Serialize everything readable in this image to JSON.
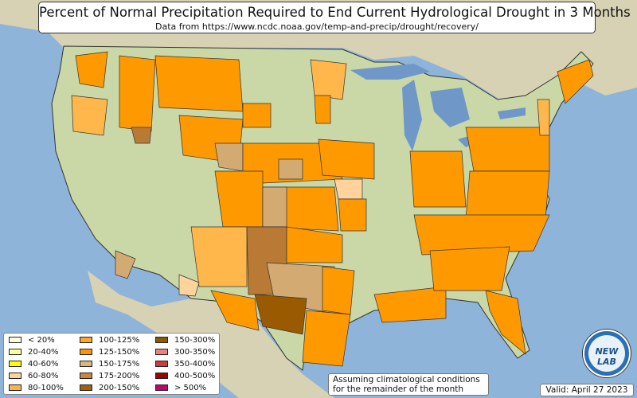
{
  "title": {
    "main": "Percent of Normal Precipitation Required to End Current Hydrological Drought in 3 Months",
    "sub": "Data from https://www.ncdc.noaa.gov/temp-and-precip/drought/recovery/"
  },
  "legend": {
    "items": [
      {
        "label": "< 20%",
        "color": "#ffffe0"
      },
      {
        "label": "20-40%",
        "color": "#ffffa0"
      },
      {
        "label": "40-60%",
        "color": "#ffff00"
      },
      {
        "label": "60-80%",
        "color": "#ffd39b"
      },
      {
        "label": "80-100%",
        "color": "#ffb24d"
      },
      {
        "label": "100-125%",
        "color": "#ffa52d"
      },
      {
        "label": "125-150%",
        "color": "#ff9400"
      },
      {
        "label": "150-175%",
        "color": "#deb482"
      },
      {
        "label": "175-200%",
        "color": "#cd853f"
      },
      {
        "label": "200-150%",
        "color": "#a0620c"
      },
      {
        "label": "150-300%",
        "color": "#8b5a00"
      },
      {
        "label": "300-350%",
        "color": "#f08080"
      },
      {
        "label": "350-400%",
        "color": "#cd3c3c"
      },
      {
        "label": "400-500%",
        "color": "#a00000"
      },
      {
        "label": "> 500%",
        "color": "#c8006e"
      }
    ]
  },
  "note": {
    "line1": "Assuming climatological conditions",
    "line2": "for the remainder of the month"
  },
  "valid": "Valid: April 27 2023",
  "logo": {
    "text": "NEW LAB",
    "icon": "globe-logo-icon"
  },
  "colors": {
    "ocean": "#8fb4d9",
    "land": "#c9d8a6",
    "outside_land": "#d7d2b4",
    "lakes": "#6f98c9",
    "drought_orange": "#ff9900",
    "drought_light": "#ffb64a",
    "drought_tan": "#d4aa73",
    "drought_brown": "#b87a34",
    "drought_dark": "#9a5a00"
  }
}
